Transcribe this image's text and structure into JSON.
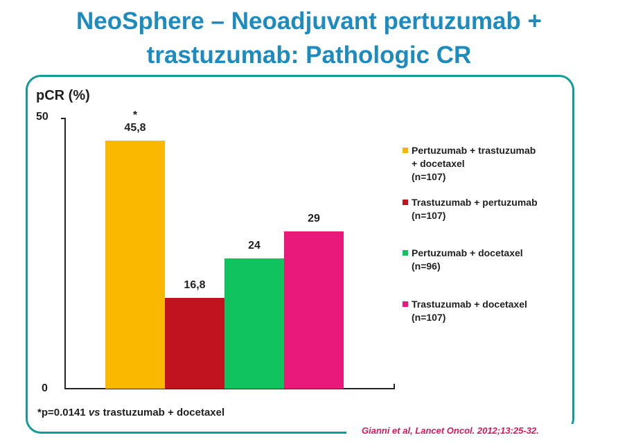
{
  "title": {
    "line1": "NeoSphere – Neoadjuvant pertuzumab +",
    "line2": "trastuzumab: Pathologic CR"
  },
  "chart_data": {
    "type": "bar",
    "title": "NeoSphere – Neoadjuvant pertuzumab + trastuzumab: Pathologic CR",
    "ylabel": "pCR (%)",
    "xlabel": "",
    "ylim": [
      0,
      50
    ],
    "yticks": [
      "0",
      "50"
    ],
    "legend_position": "right",
    "categories": [
      "Pertuzumab + trastuzumab + docetaxel (n=107)",
      "Trastuzumab + pertuzumab (n=107)",
      "Pertuzumab + docetaxel (n=96)",
      "Trastuzumab + docetaxel (n=107)"
    ],
    "values": [
      45.8,
      16.8,
      24,
      29
    ],
    "value_labels": [
      "45,8",
      "16,8",
      "24",
      "29"
    ],
    "colors": [
      "#fbb800",
      "#c1121f",
      "#11c35e",
      "#e8197a"
    ],
    "annotation": "*",
    "legend": [
      {
        "lines": [
          "Pertuzumab + trastuzumab",
          "+ docetaxel",
          "(n=107)"
        ],
        "color": "#fbb800"
      },
      {
        "lines": [
          "Trastuzumab + pertuzumab",
          "(n=107)"
        ],
        "color": "#c1121f"
      },
      {
        "lines": [
          "Pertuzumab + docetaxel",
          "(n=96)"
        ],
        "color": "#11c35e"
      },
      {
        "lines": [
          "Trastuzumab + docetaxel",
          "(n=107)"
        ],
        "color": "#e8197a"
      }
    ]
  },
  "footnote": {
    "before": "*p=0.0141 ",
    "italic": "vs",
    "after": " trastuzumab + docetaxel"
  },
  "citation": "Gianni et al, Lancet Oncol. 2012;13:25-32."
}
